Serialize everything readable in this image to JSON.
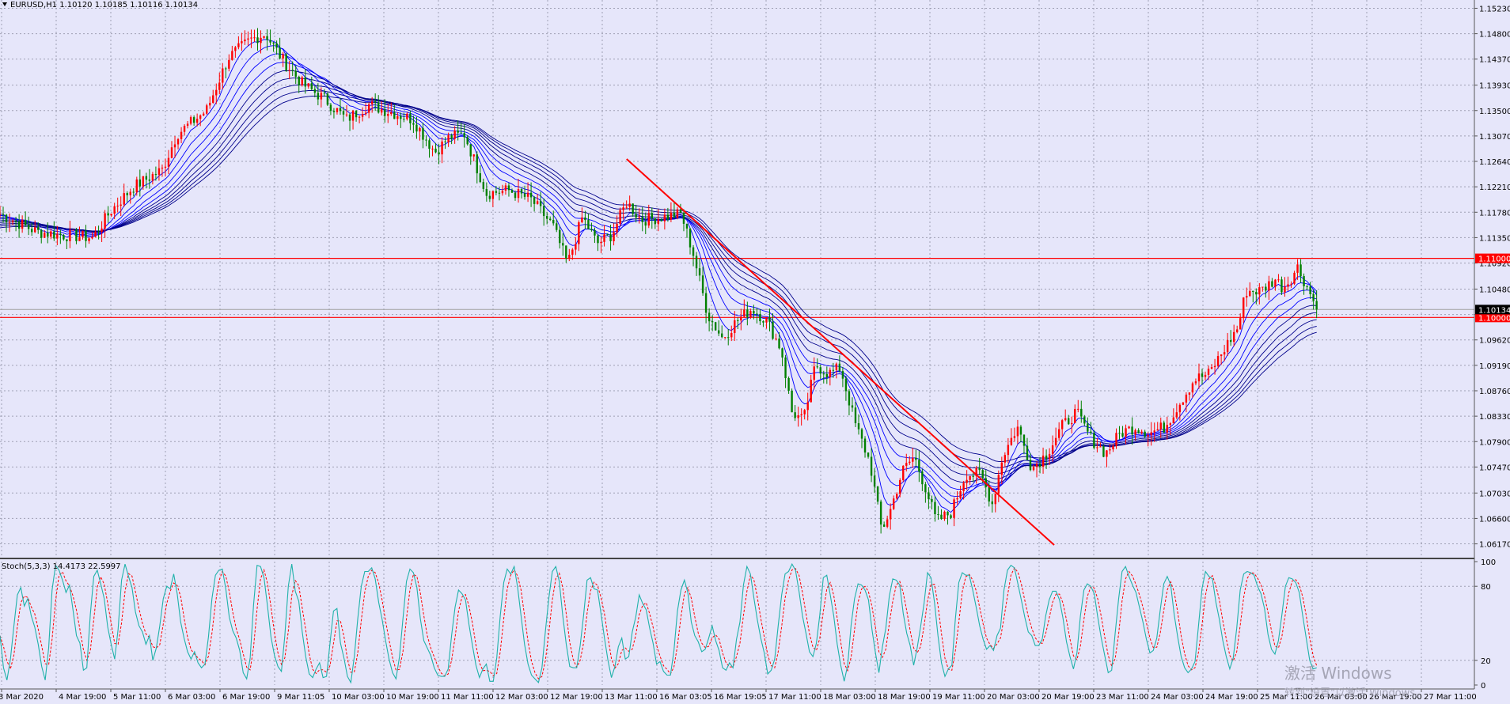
{
  "chart_data": {
    "type": "candlestick",
    "symbol_header": "EURUSD,H1  1.10120 1.10185 1.10116 1.10134",
    "price_axis": {
      "ylim": [
        1.0595,
        1.1537
      ],
      "tick_labels": [
        "1.15230",
        "1.14800",
        "1.14370",
        "1.13930",
        "1.13500",
        "1.13070",
        "1.12640",
        "1.12210",
        "1.11780",
        "1.11350",
        "1.10920",
        "1.10480",
        "1.10050",
        "1.09620",
        "1.09190",
        "1.08760",
        "1.08330",
        "1.07900",
        "1.07470",
        "1.07030",
        "1.06600",
        "1.06170"
      ]
    },
    "horizontal_lines": [
      {
        "price": 1.11,
        "label": "1.11000",
        "color": "#ff0000"
      },
      {
        "price": 1.1,
        "label": "1.10000",
        "color": "#ff0000"
      }
    ],
    "current_price": {
      "price": 1.10134,
      "label": "1.10134"
    },
    "trendline": {
      "from": [
        0.425,
        1.1268
      ],
      "to": [
        0.715,
        1.0615
      ],
      "color": "#ff0000"
    },
    "price_path": [
      [
        0.0,
        1.1175
      ],
      [
        0.025,
        1.1145
      ],
      [
        0.04,
        1.114
      ],
      [
        0.063,
        1.1135
      ],
      [
        0.075,
        1.118
      ],
      [
        0.09,
        1.122
      ],
      [
        0.11,
        1.125
      ],
      [
        0.12,
        1.131
      ],
      [
        0.14,
        1.135
      ],
      [
        0.155,
        1.144
      ],
      [
        0.17,
        1.147
      ],
      [
        0.18,
        1.148
      ],
      [
        0.192,
        1.1435
      ],
      [
        0.205,
        1.1395
      ],
      [
        0.22,
        1.137
      ],
      [
        0.235,
        1.1335
      ],
      [
        0.25,
        1.136
      ],
      [
        0.262,
        1.135
      ],
      [
        0.28,
        1.1335
      ],
      [
        0.295,
        1.128
      ],
      [
        0.305,
        1.1305
      ],
      [
        0.315,
        1.131
      ],
      [
        0.33,
        1.121
      ],
      [
        0.345,
        1.1215
      ],
      [
        0.36,
        1.12
      ],
      [
        0.375,
        1.1155
      ],
      [
        0.385,
        1.109
      ],
      [
        0.395,
        1.117
      ],
      [
        0.405,
        1.1125
      ],
      [
        0.415,
        1.114
      ],
      [
        0.425,
        1.1195
      ],
      [
        0.435,
        1.1165
      ],
      [
        0.45,
        1.117
      ],
      [
        0.462,
        1.1175
      ],
      [
        0.47,
        1.111
      ],
      [
        0.48,
        1.1005
      ],
      [
        0.49,
        1.0965
      ],
      [
        0.5,
        1.0995
      ],
      [
        0.51,
        1.1015
      ],
      [
        0.52,
        1.0995
      ],
      [
        0.53,
        1.0945
      ],
      [
        0.537,
        1.084
      ],
      [
        0.545,
        1.0825
      ],
      [
        0.553,
        1.092
      ],
      [
        0.562,
        1.0905
      ],
      [
        0.57,
        1.0915
      ],
      [
        0.58,
        1.082
      ],
      [
        0.59,
        1.0755
      ],
      [
        0.598,
        1.064
      ],
      [
        0.604,
        1.0675
      ],
      [
        0.612,
        1.074
      ],
      [
        0.62,
        1.0765
      ],
      [
        0.628,
        1.071
      ],
      [
        0.635,
        1.0655
      ],
      [
        0.645,
        1.067
      ],
      [
        0.655,
        1.0735
      ],
      [
        0.665,
        1.0735
      ],
      [
        0.673,
        1.0685
      ],
      [
        0.68,
        1.0765
      ],
      [
        0.69,
        1.0815
      ],
      [
        0.7,
        1.0745
      ],
      [
        0.71,
        1.077
      ],
      [
        0.72,
        1.0815
      ],
      [
        0.73,
        1.084
      ],
      [
        0.74,
        1.0795
      ],
      [
        0.75,
        1.077
      ],
      [
        0.76,
        1.0805
      ],
      [
        0.77,
        1.0815
      ],
      [
        0.78,
        1.0805
      ],
      [
        0.79,
        1.0815
      ],
      [
        0.8,
        1.0855
      ],
      [
        0.81,
        1.0895
      ],
      [
        0.82,
        1.0905
      ],
      [
        0.83,
        1.0945
      ],
      [
        0.84,
        1.0985
      ],
      [
        0.845,
        1.1045
      ],
      [
        0.855,
        1.1045
      ],
      [
        0.865,
        1.1065
      ],
      [
        0.87,
        1.105
      ],
      [
        0.875,
        1.1065
      ],
      [
        0.88,
        1.1085
      ],
      [
        0.888,
        1.1045
      ],
      [
        0.893,
        1.1013
      ]
    ],
    "moving_average_spreads": [
      0.0,
      0.0015,
      0.003,
      0.0045,
      0.006,
      0.0075,
      0.009,
      0.0105,
      0.012
    ],
    "stochastic": {
      "label": "Stoch(5,3,3) 14.4173 22.5997",
      "ylim": [
        0,
        100
      ],
      "tick_labels": [
        "100",
        "80",
        "20",
        "0"
      ],
      "main_series": [
        40,
        14,
        4,
        21,
        48,
        73,
        79,
        64,
        70,
        56,
        47,
        33,
        15,
        4,
        30,
        77,
        97,
        93,
        85,
        75,
        81,
        61,
        40,
        34,
        12,
        14,
        57,
        88,
        93,
        82,
        70,
        47,
        33,
        21,
        45,
        85,
        98,
        88,
        79,
        59,
        48,
        43,
        33,
        40,
        20,
        30,
        48,
        70,
        80,
        78,
        90,
        74,
        51,
        38,
        27,
        21,
        27,
        18,
        14,
        17,
        39,
        70,
        89,
        93,
        94,
        78,
        55,
        44,
        38,
        28,
        10,
        5,
        22,
        65,
        97,
        96,
        87,
        64,
        39,
        24,
        15,
        11,
        40,
        80,
        98,
        76,
        68,
        43,
        23,
        9,
        6,
        13,
        18,
        6,
        7,
        34,
        60,
        62,
        34,
        22,
        7,
        2,
        23,
        54,
        80,
        92,
        92,
        95,
        86,
        67,
        53,
        36,
        21,
        10,
        5,
        23,
        54,
        84,
        94,
        91,
        79,
        54,
        36,
        30,
        24,
        14,
        8,
        7,
        7,
        13,
        40,
        63,
        77,
        74,
        69,
        49,
        32,
        16,
        6,
        13,
        17,
        3,
        3,
        22,
        56,
        83,
        94,
        90,
        96,
        79,
        56,
        33,
        17,
        8,
        5,
        2,
        14,
        44,
        71,
        92,
        96,
        84,
        56,
        33,
        15,
        14,
        14,
        32,
        57,
        85,
        87,
        78,
        77,
        58,
        38,
        20,
        6,
        15,
        31,
        38,
        21,
        23,
        43,
        55,
        73,
        66,
        61,
        46,
        34,
        17,
        19,
        11,
        8,
        8,
        28,
        60,
        77,
        85,
        75,
        51,
        40,
        35,
        27,
        29,
        38,
        48,
        36,
        28,
        14,
        12,
        18,
        14,
        37,
        51,
        81,
        96,
        90,
        71,
        53,
        38,
        26,
        9,
        12,
        21,
        48,
        73,
        90,
        92,
        98,
        93,
        76,
        56,
        42,
        27,
        23,
        34,
        57,
        87,
        89,
        73,
        56,
        33,
        16,
        3,
        16,
        49,
        70,
        82,
        81,
        77,
        69,
        45,
        26,
        10,
        31,
        46,
        72,
        86,
        85,
        81,
        58,
        42,
        32,
        16,
        30,
        47,
        66,
        91,
        87,
        67,
        40,
        18,
        7,
        13,
        16,
        53,
        83,
        91,
        89,
        89,
        77,
        63,
        48,
        37,
        29,
        32,
        28,
        40,
        46,
        77,
        93,
        97,
        95,
        82,
        69,
        55,
        43,
        40,
        32,
        32,
        37,
        56,
        69,
        76,
        76,
        69,
        54,
        35,
        23,
        13,
        26,
        56,
        77,
        82,
        80,
        74,
        55,
        38,
        24,
        10,
        12,
        42,
        70,
        92,
        96,
        88,
        81,
        75,
        63,
        51,
        37,
        26,
        28,
        38,
        61,
        82,
        88,
        81,
        57,
        39,
        23,
        14,
        10,
        13,
        19,
        48,
        78,
        92,
        88,
        86,
        67,
        53,
        36,
        23,
        13,
        22,
        46,
        77,
        90,
        92,
        91,
        89,
        80,
        74,
        62,
        41,
        29,
        25,
        36,
        57,
        80,
        87,
        86,
        83,
        75,
        56,
        38,
        20,
        13,
        14
      ],
      "colors": {
        "main": "#20b2aa",
        "signal": "#ff0000"
      }
    },
    "time_axis": {
      "tick_labels": [
        "3 Mar 2020",
        "4 Mar 19:00",
        "5 Mar 11:00",
        "6 Mar 03:00",
        "6 Mar 19:00",
        "9 Mar 11:05",
        "10 Mar 03:00",
        "10 Mar 19:00",
        "11 Mar 11:00",
        "12 Mar 03:00",
        "12 Mar 19:00",
        "13 Mar 11:00",
        "16 Mar 03:05",
        "16 Mar 19:05",
        "17 Mar 11:00",
        "18 Mar 03:00",
        "18 Mar 19:00",
        "19 Mar 11:00",
        "20 Mar 03:00",
        "20 Mar 19:00",
        "23 Mar 11:00",
        "24 Mar 03:00",
        "24 Mar 19:00",
        "25 Mar 11:00",
        "26 Mar 03:00",
        "26 Mar 19:00",
        "27 Mar 11:00"
      ]
    },
    "colors": {
      "background": "#e6e6fa",
      "bull_candle": "#ff0000",
      "bear_candle": "#008000",
      "ma_fast": "#0000ff",
      "ma_slow": "#00008b",
      "grid": "#9fa0b4"
    },
    "grid": true
  },
  "watermark": {
    "line1": "激活 Windows",
    "line2": "转到\"设置\"以激活 Windows。"
  }
}
